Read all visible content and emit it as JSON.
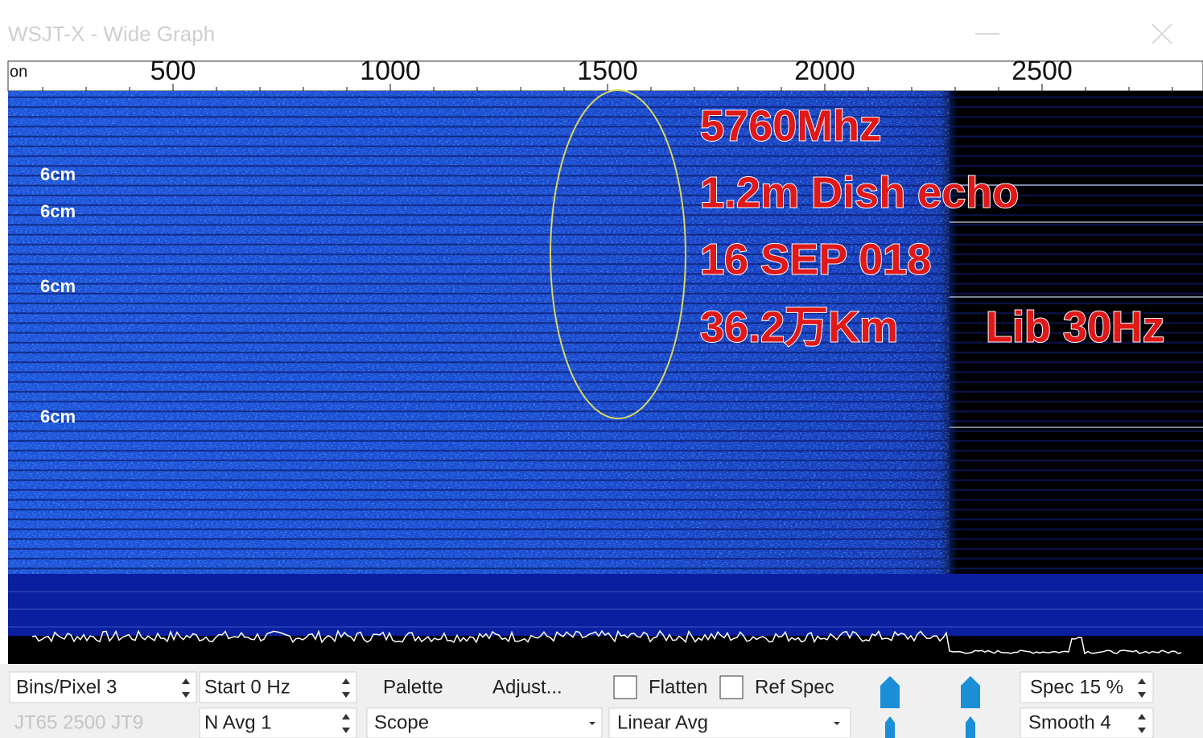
{
  "window": {
    "title": "WSJT-X - Wide Graph"
  },
  "axis": {
    "label": "on",
    "ticks": [
      500,
      1000,
      1500,
      2000,
      2500
    ]
  },
  "waterfall_labels": [
    "6cm",
    "6cm",
    "6cm",
    "6cm"
  ],
  "overlay": {
    "lines": [
      "5760Mhz",
      "1.2m Dish echo",
      "16 SEP 018",
      "36.2万Km",
      "Lib 30Hz"
    ]
  },
  "controls": {
    "bins_per_pixel": "Bins/Pixel  3",
    "start": "Start 0 Hz",
    "palette": "Palette",
    "adjust": "Adjust...",
    "flatten": "Flatten",
    "ref_spec": "Ref Spec",
    "spec": "Spec 15 %",
    "modes": "JT65  2500  JT9",
    "n_avg": "N Avg 1",
    "scope": "Scope",
    "linear_avg": "Linear Avg",
    "smooth": "Smooth  4"
  }
}
